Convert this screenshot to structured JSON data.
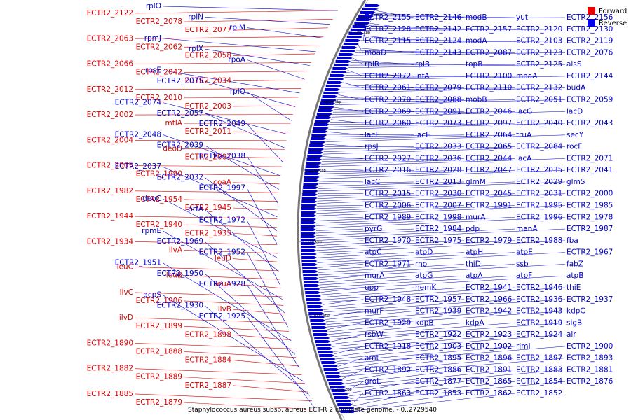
{
  "legend": [
    {
      "label": "Forward",
      "color": "#ee0000"
    },
    {
      "label": "Reverse",
      "color": "#0000ee"
    }
  ],
  "caption": "Staphylococcus aureus subsp. aureus ECT-R 2 complete genome. - 0..2729540",
  "ticks": [
    "2250 kbp",
    "2200 kbp",
    "2150 kbp",
    "2100 kbp",
    "2050 kbp",
    "2000 kbp"
  ],
  "colors": {
    "forward": "#dd0000",
    "reverse": "#0000cc",
    "backbone": "#777777"
  },
  "left_forward_labels": [
    "ECTR2_2122",
    "ECTR2_2078",
    "ECTR2_2077",
    "ECTR2_2063",
    "ECTR2_2062",
    "ECTR2_2058",
    "ECTR2_2066",
    "ECTR2_2042",
    "ECTR2_2034",
    "ECTR2_2012",
    "ECTR2_2010",
    "ECTR2_2003",
    "ECTR2_2002",
    "mtlA",
    "ECTR2_2011",
    "ECTR2_2004",
    "deoD",
    "ECTR2_2001",
    "ECTR2_2005",
    "ECTR2_1990",
    "coaA",
    "ECTR2_1982",
    "ECTR2_1954",
    "ECTR2_1945",
    "ECTR2_1944",
    "ECTR2_1940",
    "ECTR2_1935",
    "ECTR2_1934",
    "ilvA",
    "leuD",
    "leuC",
    "leuB",
    "leuA",
    "ilvC",
    "ECTR2_1906",
    "ilvB",
    "ilvD",
    "ECTR2_1899",
    "ECTR2_1898",
    "ECTR2_1890",
    "ECTR2_1888",
    "ECTR2_1884",
    "ECTR2_1882",
    "ECTR2_1889",
    "ECTR2_1887",
    "ECTR2_1885",
    "ECTR2_1879"
  ],
  "left_reverse_labels": [
    "rplO",
    "rplN",
    "rplM",
    "rpmJ",
    "rplX",
    "rpoA",
    "rpsE",
    "ECTR2_2075",
    "rplQ",
    "ECTR2_2074",
    "ECTR2_2057",
    "ECTR2_2049",
    "ECTR2_2048",
    "ECTR2_2039",
    "ECTR2_2038",
    "ECTR2_2037",
    "ECTR2_2032",
    "ECTR2_1997",
    "deoC",
    "prfA",
    "ECTR2_1972",
    "rpmE",
    "ECTR2_1969",
    "ECTR2_1952",
    "ECTR2_1951",
    "ECTR2_1950",
    "ECTR2_1928",
    "acpS",
    "ECTR2_1930",
    "ECTR2_1925"
  ],
  "right_reverse_labels": [
    "ECTR2_2155",
    "ECTR2_2146",
    "modB",
    "yut",
    "ECTR2_2156",
    "ECTR2_2128",
    "ECTR2_2142",
    "ECTR2_2157",
    "ECTR2_2120",
    "ECTR2_2130",
    "ECTR2_2115",
    "ECTR2_2124",
    "modA",
    "ECTR2_2103",
    "ECTR2_2119",
    "moaD",
    "ECTR2_2143",
    "ECTR2_2087",
    "ECTR2_2123",
    "ECTR2_2076",
    "rplR",
    "rplB",
    "topB",
    "ECTR2_2125",
    "alsS",
    "ECTR2_2072",
    "infA",
    "ECTR2_2100",
    "moaA",
    "ECTR2_2144",
    "ECTR2_2061",
    "ECTR2_2079",
    "ECTR2_2110",
    "ECTR2_2132",
    "budA",
    "ECTR2_2070",
    "ECTR2_2088",
    "mobB",
    "ECTR2_2051",
    "ECTR2_2059",
    "ECTR2_2069",
    "ECTR2_2091",
    "ECTR2_2046",
    "lacG",
    "lacD",
    "ECTR2_2060",
    "ECTR2_2073",
    "ECTR2_2097",
    "ECTR2_2040",
    "ECTR2_2043",
    "lacF",
    "lacE",
    "ECTR2_2064",
    "truA",
    "secY",
    "rpsJ",
    "ECTR2_2033",
    "ECTR2_2065",
    "ECTR2_2084",
    "rocF",
    "ECTR2_2027",
    "ECTR2_2036",
    "ECTR2_2044",
    "lacA",
    "ECTR2_2071",
    "ECTR2_2016",
    "ECTR2_2028",
    "ECTR2_2047",
    "ECTR2_2035",
    "ECTR2_2041",
    "lacC",
    "ECTR2_2013",
    "glmM",
    "ECTR2_2029",
    "glmS",
    "ECTR2_2015",
    "ECTR2_2030",
    "ECTR2_2045",
    "ECTR2_2031",
    "ECTR2_2000",
    "ECTR2_2006",
    "ECTR2_2007",
    "ECTR2_1991",
    "ECTR2_1995",
    "ECTR2_1985",
    "ECTR2_1989",
    "ECTR2_1998",
    "murA",
    "ECTR2_1996",
    "ECTR2_1978",
    "pyrG",
    "ECTR2_1984",
    "pdp",
    "manA",
    "ECTR2_1987",
    "ECTR2_1970",
    "ECTR2_1975",
    "ECTR2_1979",
    "ECTR2_1988",
    "fba",
    "atpC",
    "atpD",
    "atpH",
    "atpE",
    "ECTR2_1967",
    "ECTR2_1971",
    "rho",
    "thiD",
    "ssb",
    "fabZ",
    "murA",
    "atpG",
    "atpA",
    "atpF",
    "atpB",
    "upp",
    "hemK",
    "ECTR2_1941",
    "ECTR2_1946",
    "thiE",
    "ECTR2_1948",
    "ECTR2_1957",
    "ECTR2_1966",
    "ECTR2_1936",
    "ECTR2_1937",
    "murF",
    "ECTR2_1939",
    "ECTR2_1942",
    "ECTR2_1943",
    "kdpC",
    "ECTR2_1929",
    "kdpB",
    "kdpA",
    "ECTR2_1919",
    "sigB",
    "rsbW",
    "ECTR2_1922",
    "ECTR2_1923",
    "ECTR2_1924",
    "alr",
    "ECTR2_1918",
    "ECTR2_1903",
    "ECTR2_1902",
    "rimI",
    "ECTR2_1900",
    "amt",
    "ECTR2_1895",
    "ECTR2_1896",
    "ECTR2_1897",
    "ECTR2_1893",
    "ECTR2_1892",
    "ECTR2_1886",
    "ECTR2_1891",
    "ECTR2_1883",
    "ECTR2_1881",
    "groL",
    "ECTR2_1877",
    "ECTR2_1865",
    "ECTR2_1854",
    "ECTR2_1876",
    "ECTR2_1863",
    "ECTR2_1853",
    "ECTR2_1862",
    "ECTR2_1852"
  ]
}
